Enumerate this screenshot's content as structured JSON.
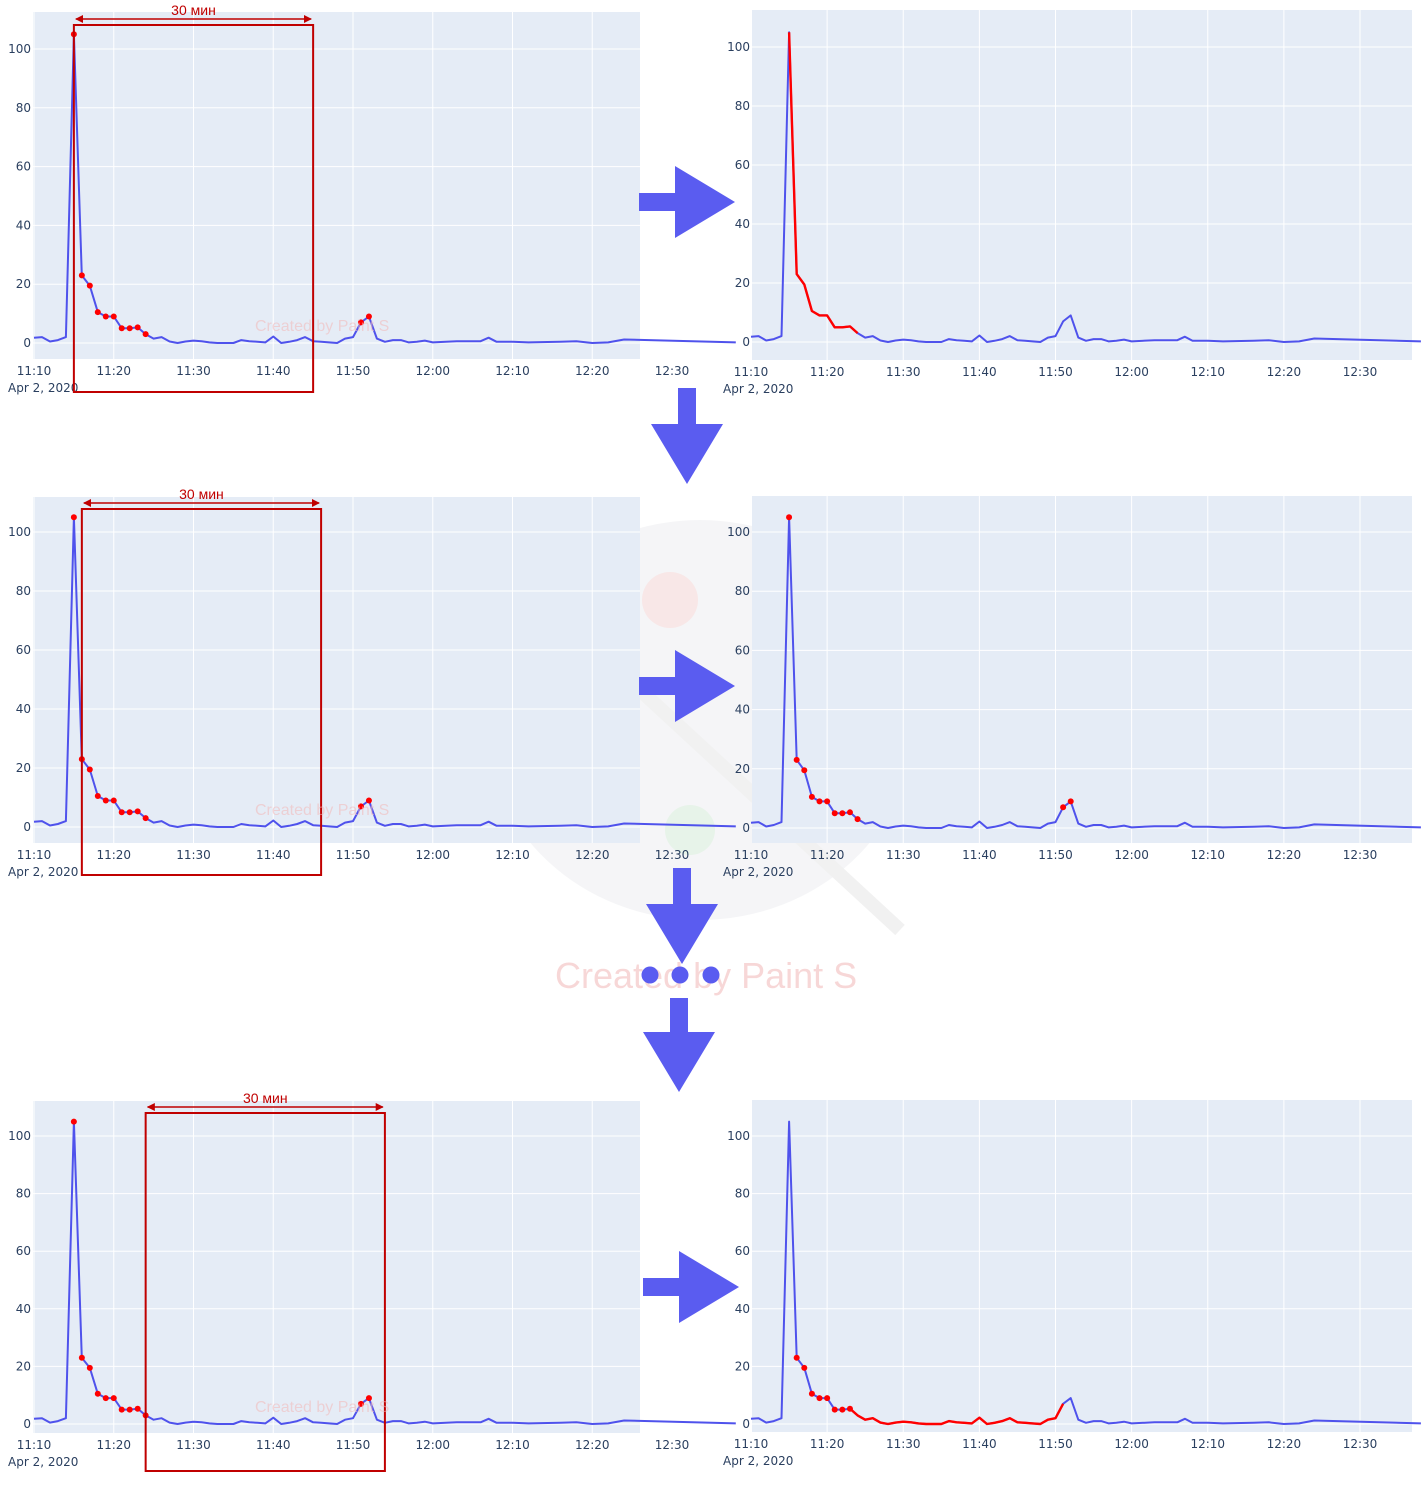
{
  "colors": {
    "plot_bg": "#e5ecf6",
    "grid": "#ffffff",
    "line": "#4f52ec",
    "highlight": "#ff0000",
    "box": "#c00000",
    "arrow": "#5a5cf0",
    "axis_text": "#2a3f5f"
  },
  "watermark": {
    "text": "Created by Paint S"
  },
  "window_label": "30 мин",
  "date_label": "Apr 2, 2020",
  "chart_data": [
    {
      "type": "line",
      "x_unit": "minutes",
      "x_tick_values": [
        670,
        680,
        690,
        700,
        710,
        720,
        730,
        740,
        750
      ],
      "x_tick_labels": [
        "11:10",
        "11:20",
        "11:30",
        "11:40",
        "11:50",
        "12:00",
        "12:10",
        "12:20",
        "12:30"
      ],
      "y_tick_values": [
        0,
        20,
        40,
        60,
        80,
        100
      ],
      "ylim": [
        -5,
        111
      ],
      "xlim": [
        670,
        759
      ],
      "series": [
        {
          "x": [
            "11:10",
            "11:11",
            "11:12",
            "11:13",
            "11:14",
            "11:15",
            "11:16",
            "11:17",
            "11:18",
            "11:19",
            "11:20",
            "11:21",
            "11:22",
            "11:23",
            "11:24",
            "11:25",
            "11:26",
            "11:27",
            "11:28",
            "11:29",
            "11:30",
            "11:31",
            "11:32",
            "11:33",
            "11:34",
            "11:35",
            "11:36",
            "11:37",
            "11:38",
            "11:39",
            "11:40",
            "11:41",
            "11:42",
            "11:43",
            "11:44",
            "11:45",
            "11:46",
            "11:47",
            "11:48",
            "11:49",
            "11:50",
            "11:51",
            "11:52",
            "11:53",
            "11:54",
            "11:55",
            "11:56",
            "11:57",
            "11:58",
            "11:59",
            "12:00",
            "12:03",
            "12:06",
            "12:07",
            "12:08",
            "12:10",
            "12:12",
            "12:16",
            "12:18",
            "12:20",
            "12:22",
            "12:24",
            "12:38"
          ],
          "y": [
            1.8,
            2,
            0.5,
            1,
            2,
            105,
            23,
            19.5,
            10.5,
            9,
            9,
            5,
            5,
            5.3,
            3,
            1.5,
            2,
            0.5,
            0,
            0.5,
            0.8,
            0.6,
            0.2,
            0,
            0,
            0,
            1,
            0.6,
            0.4,
            0.2,
            2.2,
            0,
            0.4,
            1,
            2,
            0.6,
            0.4,
            0.2,
            0,
            1.5,
            2,
            7,
            9,
            1.5,
            0.4,
            1,
            1,
            0.2,
            0.4,
            0.8,
            0.2,
            0.6,
            0.6,
            1.8,
            0.4,
            0.4,
            0.2,
            0.4,
            0.6,
            0,
            0.2,
            1.2,
            0.2
          ]
        }
      ]
    }
  ],
  "panels": [
    {
      "window_start": "11:15",
      "window_end": "11:45",
      "red_points": [
        "11:15",
        "11:16",
        "11:17",
        "11:18",
        "11:19",
        "11:20",
        "11:21",
        "11:22",
        "11:23",
        "11:24",
        "11:51",
        "11:52"
      ],
      "red_line": []
    },
    {
      "window_start": "11:15",
      "window_end": "11:45",
      "red_points": [],
      "red_line": [
        "11:15",
        "11:24"
      ]
    },
    {
      "window_start": "11:16",
      "window_end": "11:46",
      "red_points": [
        "11:15",
        "11:16",
        "11:17",
        "11:18",
        "11:19",
        "11:20",
        "11:21",
        "11:22",
        "11:23",
        "11:24",
        "11:51",
        "11:52"
      ],
      "red_line": []
    },
    {
      "window_start": "11:16",
      "window_end": "11:46",
      "red_points": [
        "11:15",
        "11:16",
        "11:17",
        "11:18",
        "11:19",
        "11:20",
        "11:21",
        "11:22",
        "11:23",
        "11:24",
        "11:51",
        "11:52"
      ],
      "red_line": []
    },
    {
      "window_start": "11:24",
      "window_end": "11:54",
      "red_points": [
        "11:15",
        "11:16",
        "11:17",
        "11:18",
        "11:19",
        "11:20",
        "11:21",
        "11:22",
        "11:23",
        "11:24",
        "11:51",
        "11:52"
      ],
      "red_line": []
    },
    {
      "window_start": "11:24",
      "window_end": "11:54",
      "red_points": [
        "11:16",
        "11:17",
        "11:18",
        "11:19",
        "11:20",
        "11:21",
        "11:22",
        "11:23"
      ],
      "red_line": [
        "11:23",
        "11:51"
      ]
    }
  ]
}
